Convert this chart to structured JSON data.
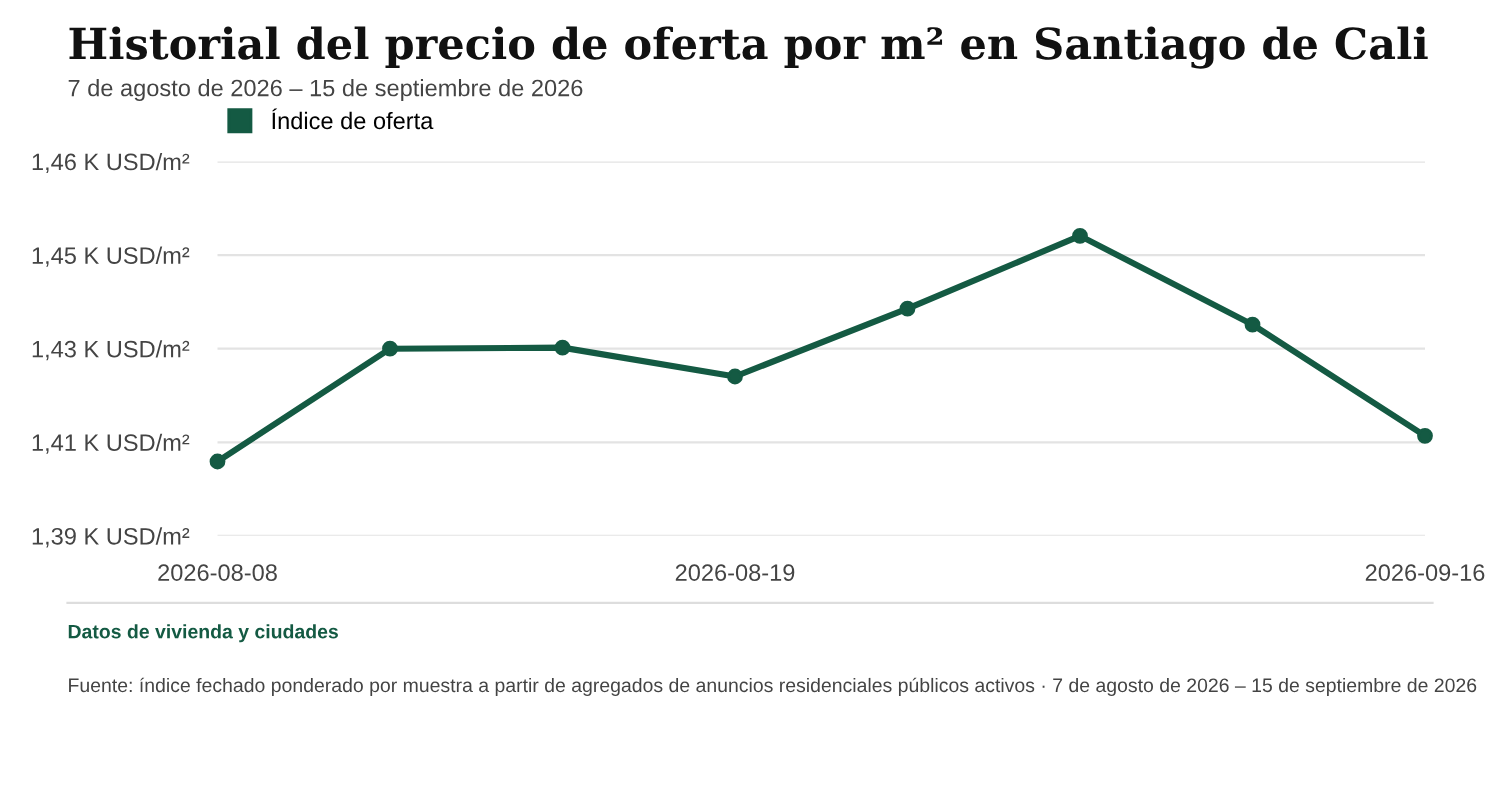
{
  "chart_data": {
    "type": "line",
    "title": "Historial del precio de oferta por m² en Santiago de Cali",
    "subtitle": "7 de agosto de 2026 – 15 de septiembre de 2026",
    "categories": [
      "2026-08-08",
      null,
      null,
      "2026-08-19",
      null,
      null,
      null,
      "2026-09-16"
    ],
    "series": [
      {
        "name": "Índice de oferta",
        "color": "#145a43",
        "values": [
          1.4064,
          1.4275,
          1.4277,
          1.4223,
          1.435,
          1.4486,
          1.432,
          1.4112
        ]
      }
    ],
    "ylim": [
      1.3925,
      1.4625
    ],
    "yticks": [
      {
        "value": 1.3925,
        "label": "1,39 K USD/m²"
      },
      {
        "value": 1.41,
        "label": "1,41 K USD/m²"
      },
      {
        "value": 1.4275,
        "label": "1,43 K USD/m²"
      },
      {
        "value": 1.445,
        "label": "1,45 K USD/m²"
      },
      {
        "value": 1.4625,
        "label": "1,46 K USD/m²"
      }
    ],
    "grid": "y",
    "legend": "top left",
    "marker": "circle",
    "line_style": "solid",
    "annotations": [
      "Datos de vivienda y ciudades",
      "Fuente: índice fechado ponderado por muestra a partir de agregados de anuncios residenciales públicos activos · 7 de agosto de 2026 – 15 de septiembre de 2026"
    ]
  }
}
